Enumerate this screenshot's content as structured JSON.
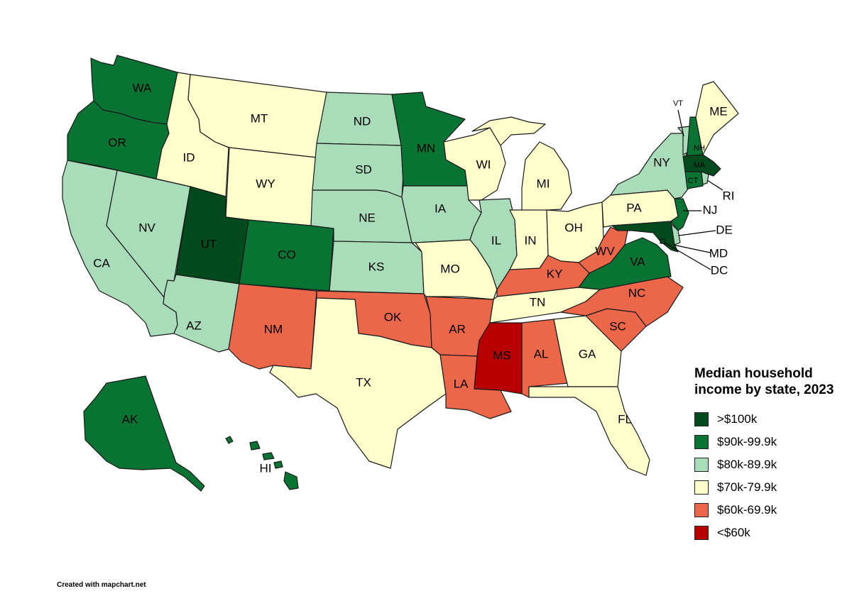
{
  "legend": {
    "title": "Median household\nincome by state, 2023",
    "items": [
      {
        "label": ">$100k",
        "color": "#004a1e"
      },
      {
        "label": "$90k-99.9k",
        "color": "#087332"
      },
      {
        "label": "$80k-89.9k",
        "color": "#a9dcb9"
      },
      {
        "label": "$70k-79.9k",
        "color": "#ffffcc"
      },
      {
        "label": "$60k-69.9k",
        "color": "#ec6649"
      },
      {
        "label": "<$60k",
        "color": "#b90000"
      }
    ]
  },
  "credit": "Created with mapchart.net",
  "states": [
    {
      "abbr": "WA",
      "bin": 1
    },
    {
      "abbr": "OR",
      "bin": 1
    },
    {
      "abbr": "CA",
      "bin": 2
    },
    {
      "abbr": "NV",
      "bin": 2
    },
    {
      "abbr": "ID",
      "bin": 3
    },
    {
      "abbr": "MT",
      "bin": 3
    },
    {
      "abbr": "WY",
      "bin": 3
    },
    {
      "abbr": "UT",
      "bin": 0
    },
    {
      "abbr": "AZ",
      "bin": 2
    },
    {
      "abbr": "CO",
      "bin": 1
    },
    {
      "abbr": "NM",
      "bin": 4
    },
    {
      "abbr": "ND",
      "bin": 2
    },
    {
      "abbr": "SD",
      "bin": 2
    },
    {
      "abbr": "NE",
      "bin": 2
    },
    {
      "abbr": "KS",
      "bin": 2
    },
    {
      "abbr": "OK",
      "bin": 4
    },
    {
      "abbr": "TX",
      "bin": 3
    },
    {
      "abbr": "MN",
      "bin": 1
    },
    {
      "abbr": "IA",
      "bin": 2
    },
    {
      "abbr": "MO",
      "bin": 3
    },
    {
      "abbr": "AR",
      "bin": 4
    },
    {
      "abbr": "LA",
      "bin": 4
    },
    {
      "abbr": "WI",
      "bin": 3
    },
    {
      "abbr": "IL",
      "bin": 2
    },
    {
      "abbr": "MI",
      "bin": 3
    },
    {
      "abbr": "IN",
      "bin": 3
    },
    {
      "abbr": "OH",
      "bin": 3
    },
    {
      "abbr": "KY",
      "bin": 4
    },
    {
      "abbr": "TN",
      "bin": 3
    },
    {
      "abbr": "MS",
      "bin": 5
    },
    {
      "abbr": "AL",
      "bin": 4
    },
    {
      "abbr": "GA",
      "bin": 3
    },
    {
      "abbr": "FL",
      "bin": 3
    },
    {
      "abbr": "SC",
      "bin": 4
    },
    {
      "abbr": "NC",
      "bin": 4
    },
    {
      "abbr": "VA",
      "bin": 1
    },
    {
      "abbr": "WV",
      "bin": 4
    },
    {
      "abbr": "PA",
      "bin": 3
    },
    {
      "abbr": "NY",
      "bin": 2
    },
    {
      "abbr": "VT",
      "bin": 2
    },
    {
      "abbr": "NH",
      "bin": 1
    },
    {
      "abbr": "ME",
      "bin": 3
    },
    {
      "abbr": "MA",
      "bin": 0
    },
    {
      "abbr": "RI",
      "bin": 2
    },
    {
      "abbr": "CT",
      "bin": 1
    },
    {
      "abbr": "NJ",
      "bin": 1
    },
    {
      "abbr": "DE",
      "bin": 2
    },
    {
      "abbr": "MD",
      "bin": 0
    },
    {
      "abbr": "DC",
      "bin": 0
    },
    {
      "abbr": "AK",
      "bin": 1
    },
    {
      "abbr": "HI",
      "bin": 1
    }
  ]
}
